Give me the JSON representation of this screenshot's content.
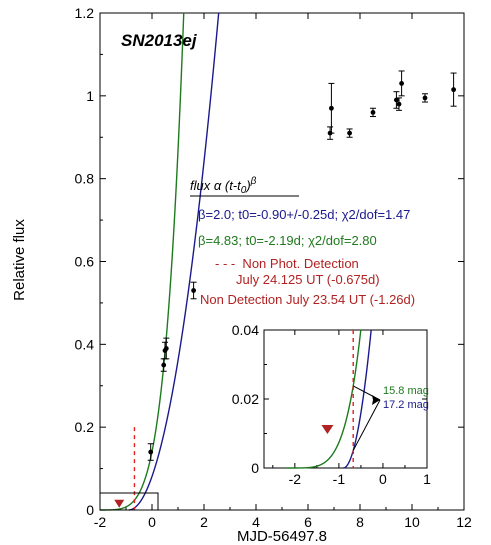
{
  "chart_data": [
    {
      "type": "scatter",
      "title": "SN2013ej",
      "xlabel": "MJD-56497.8",
      "ylabel": "Relative flux",
      "xlim": [
        -2,
        12
      ],
      "ylim": [
        0,
        1.2
      ],
      "xticks": [
        "-2",
        "0",
        "2",
        "4",
        "6",
        "8",
        "10",
        "12"
      ],
      "yticks": [
        "0",
        "0.2",
        "0.4",
        "0.6",
        "0.8",
        "1",
        "1.2"
      ],
      "grid": false,
      "observations": [
        {
          "x": -0.05,
          "y": 0.14,
          "err": 0.02
        },
        {
          "x": 0.45,
          "y": 0.35,
          "err": 0.015
        },
        {
          "x": 0.5,
          "y": 0.385,
          "err": 0.02
        },
        {
          "x": 0.55,
          "y": 0.39,
          "err": 0.025
        },
        {
          "x": 1.6,
          "y": 0.53,
          "err": 0.02
        },
        {
          "x": 6.85,
          "y": 0.91,
          "err": 0.015
        },
        {
          "x": 6.9,
          "y": 0.97,
          "err": 0.06
        },
        {
          "x": 7.6,
          "y": 0.91,
          "err": 0.01
        },
        {
          "x": 8.5,
          "y": 0.96,
          "err": 0.01
        },
        {
          "x": 9.4,
          "y": 0.99,
          "err": 0.02
        },
        {
          "x": 9.5,
          "y": 0.98,
          "err": 0.015
        },
        {
          "x": 9.6,
          "y": 1.03,
          "err": 0.03
        },
        {
          "x": 10.5,
          "y": 0.995,
          "err": 0.01
        },
        {
          "x": 11.6,
          "y": 1.015,
          "err": 0.04
        }
      ],
      "series": [
        {
          "name": "β=2.0; t0=-0.90+/-0.25d; χ2/dof=1.47",
          "color": "#1a1a8c",
          "beta": 2.0,
          "t0": -0.9,
          "amplitude": 0.1
        },
        {
          "name": "β=4.83; t0=-2.19d; χ2/dof=2.80",
          "color": "#1e7a1e",
          "beta": 4.83,
          "t0": -2.19,
          "amplitude": 0.0032
        }
      ],
      "non_detection": {
        "x": -1.26,
        "y": 0.015,
        "color": "#b22222"
      },
      "non_phot_detection": {
        "x": -0.675,
        "color": "#e02020",
        "y_top": 0.2
      },
      "zoom_box": {
        "xlim": [
          -2,
          1
        ],
        "ylim": [
          0,
          0.04
        ]
      },
      "legend": {
        "heading": "flux α (t-t0)β",
        "entries": [
          {
            "text": "β=2.0; t0=-0.90+/-0.25d; χ2/dof=1.47",
            "color": "#1a1a8c"
          },
          {
            "text": "β=4.83; t0=-2.19d; χ2/dof=2.80",
            "color": "#1e7a1e"
          },
          {
            "text": "- - -  Non Phot. Detection",
            "color": "#b22222"
          },
          {
            "text": "July 24.125 UT (-0.675d)",
            "color": "#b22222"
          },
          {
            "text": "Non Detection July 23.54 UT (-1.26d)",
            "color": "#b22222"
          }
        ]
      }
    },
    {
      "type": "line",
      "title": "",
      "xlabel": "",
      "ylabel": "",
      "xlim": [
        -2.7,
        1
      ],
      "ylim": [
        0,
        0.04
      ],
      "xticks": [
        "-2",
        "-1",
        "0",
        "1"
      ],
      "yticks": [
        "0",
        "0.02",
        "0.04"
      ],
      "annotations": [
        {
          "text": "15.8 mag",
          "color": "#1e7a1e"
        },
        {
          "text": "17.2 mag",
          "color": "#1a1a8c"
        }
      ]
    }
  ]
}
